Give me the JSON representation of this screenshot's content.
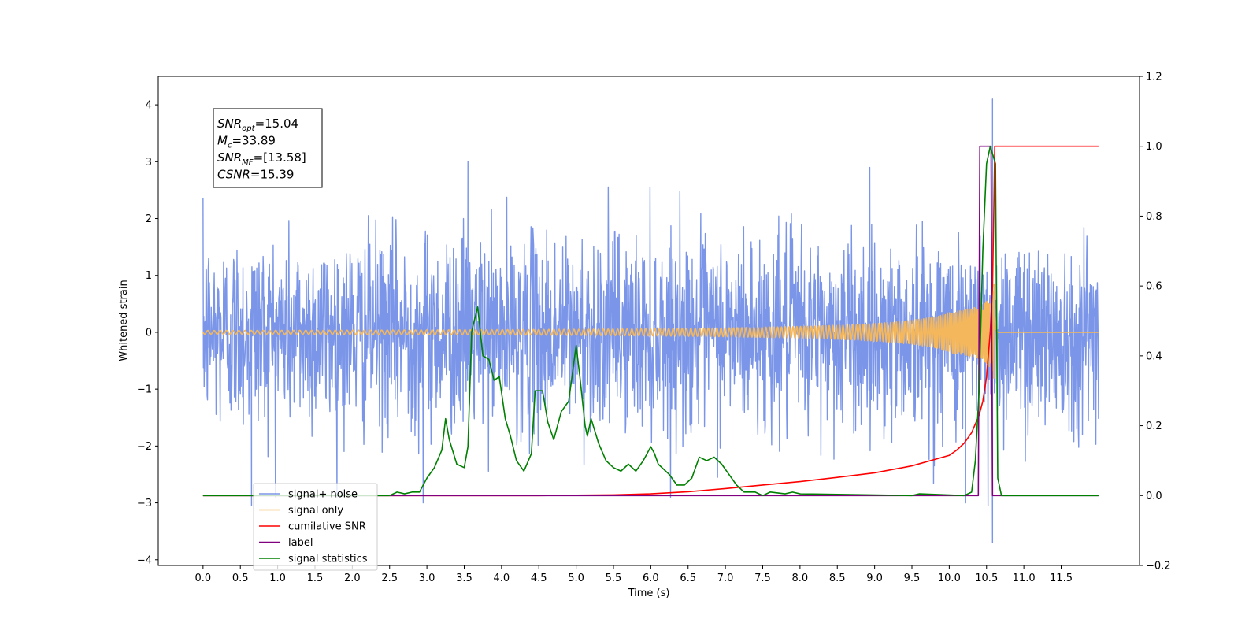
{
  "chart_data": {
    "type": "line",
    "title": "",
    "xlabel": "Time (s)",
    "ylabel": "Whitened strain",
    "y2label": "",
    "xlim": [
      -0.6,
      12.55
    ],
    "ylim": [
      -4.1,
      4.5
    ],
    "y2lim": [
      -0.2,
      1.2
    ],
    "x_ticks": [
      0.0,
      0.5,
      1.0,
      1.5,
      2.0,
      2.5,
      3.0,
      3.5,
      4.0,
      4.5,
      5.0,
      5.5,
      6.0,
      6.5,
      7.0,
      7.5,
      8.0,
      8.5,
      9.0,
      9.5,
      10.0,
      10.5,
      11.0,
      11.5
    ],
    "x_tick_labels": [
      "0.0",
      "0.5",
      "1.0",
      "1.5",
      "2.0",
      "2.5",
      "3.0",
      "3.5",
      "4.0",
      "4.5",
      "5.0",
      "5.5",
      "6.0",
      "6.5",
      "7.0",
      "7.5",
      "8.0",
      "8.5",
      "9.0",
      "9.5",
      "10.0",
      "10.5",
      "11.0",
      "11.5"
    ],
    "y_ticks": [
      4,
      3,
      2,
      1,
      0,
      -1,
      -2,
      -3,
      -4
    ],
    "y_tick_labels": [
      "4",
      "3",
      "2",
      "1",
      "0",
      "−1",
      "−2",
      "−3",
      "−4"
    ],
    "y2_ticks": [
      1.2,
      1.0,
      0.8,
      0.6,
      0.4,
      0.2,
      0.0,
      -0.2
    ],
    "y2_tick_labels": [
      "1.2",
      "1.0",
      "0.8",
      "0.6",
      "0.4",
      "0.2",
      "0.0",
      "−0.2"
    ],
    "grid": false,
    "legend_position": "lower-left",
    "legend": [
      "signal+ noise",
      "signal only",
      "cumilative SNR",
      "label",
      "signal statistics"
    ],
    "annotation": {
      "lines": [
        {
          "label": "SNR",
          "sub": "opt",
          "value": "=15.04"
        },
        {
          "label": "M",
          "sub": "c",
          "value": "=33.89"
        },
        {
          "label": "SNR",
          "sub": "MF",
          "value": "=[13.58]"
        },
        {
          "label": "CSNR",
          "sub": "",
          "value": "=15.39"
        }
      ]
    },
    "series": [
      {
        "name": "signal+ noise",
        "color": "#7b96e8",
        "axis": "left",
        "x_range": [
          0.0,
          12.0
        ],
        "noise_std": 0.85,
        "peaks": [
          {
            "x": 10.58,
            "y": 4.1
          },
          {
            "x": 10.58,
            "y": -3.7
          },
          {
            "x": 3.55,
            "y": 3.0
          },
          {
            "x": 0.65,
            "y": -3.05
          },
          {
            "x": 2.95,
            "y": -3.0
          },
          {
            "x": 10.52,
            "y": -3.05
          },
          {
            "x": 10.22,
            "y": -3.0
          }
        ]
      },
      {
        "name": "signal only",
        "color": "#f5b75b",
        "axis": "left",
        "x_range": [
          0.0,
          12.0
        ],
        "t_merge": 10.6,
        "peak_amplitude": 0.85
      },
      {
        "name": "cumilative SNR",
        "color": "#ff0000",
        "axis": "right",
        "points": [
          [
            0.0,
            0.0
          ],
          [
            4.5,
            0.0
          ],
          [
            5.0,
            0.001
          ],
          [
            5.5,
            0.002
          ],
          [
            6.0,
            0.005
          ],
          [
            6.5,
            0.011
          ],
          [
            7.0,
            0.02
          ],
          [
            7.5,
            0.03
          ],
          [
            8.0,
            0.04
          ],
          [
            8.5,
            0.052
          ],
          [
            9.0,
            0.065
          ],
          [
            9.5,
            0.085
          ],
          [
            10.0,
            0.115
          ],
          [
            10.1,
            0.13
          ],
          [
            10.2,
            0.15
          ],
          [
            10.3,
            0.18
          ],
          [
            10.4,
            0.23
          ],
          [
            10.45,
            0.27
          ],
          [
            10.5,
            0.34
          ],
          [
            10.55,
            0.47
          ],
          [
            10.58,
            0.6
          ],
          [
            10.6,
            0.85
          ],
          [
            10.61,
            1.0
          ],
          [
            12.0,
            1.0
          ]
        ]
      },
      {
        "name": "label",
        "color": "#800080",
        "axis": "right",
        "points": [
          [
            0.0,
            0.0
          ],
          [
            10.39,
            0.0
          ],
          [
            10.41,
            1.0
          ],
          [
            10.56,
            1.0
          ],
          [
            10.58,
            0.0
          ],
          [
            12.0,
            0.0
          ]
        ]
      },
      {
        "name": "signal statistics",
        "color": "#008000",
        "axis": "right",
        "points": [
          [
            0.0,
            0.0
          ],
          [
            2.5,
            0.0
          ],
          [
            2.6,
            0.01
          ],
          [
            2.7,
            0.005
          ],
          [
            2.8,
            0.01
          ],
          [
            2.9,
            0.01
          ],
          [
            3.0,
            0.05
          ],
          [
            3.1,
            0.08
          ],
          [
            3.2,
            0.13
          ],
          [
            3.25,
            0.22
          ],
          [
            3.3,
            0.16
          ],
          [
            3.4,
            0.09
          ],
          [
            3.5,
            0.08
          ],
          [
            3.55,
            0.14
          ],
          [
            3.6,
            0.47
          ],
          [
            3.68,
            0.54
          ],
          [
            3.75,
            0.4
          ],
          [
            3.83,
            0.39
          ],
          [
            3.9,
            0.33
          ],
          [
            3.97,
            0.34
          ],
          [
            4.05,
            0.22
          ],
          [
            4.12,
            0.17
          ],
          [
            4.2,
            0.1
          ],
          [
            4.3,
            0.07
          ],
          [
            4.4,
            0.12
          ],
          [
            4.45,
            0.3
          ],
          [
            4.55,
            0.3
          ],
          [
            4.62,
            0.21
          ],
          [
            4.7,
            0.16
          ],
          [
            4.8,
            0.24
          ],
          [
            4.9,
            0.27
          ],
          [
            5.0,
            0.43
          ],
          [
            5.05,
            0.34
          ],
          [
            5.12,
            0.2
          ],
          [
            5.15,
            0.17
          ],
          [
            5.2,
            0.22
          ],
          [
            5.3,
            0.15
          ],
          [
            5.4,
            0.1
          ],
          [
            5.5,
            0.08
          ],
          [
            5.6,
            0.07
          ],
          [
            5.7,
            0.09
          ],
          [
            5.8,
            0.07
          ],
          [
            5.9,
            0.1
          ],
          [
            6.0,
            0.14
          ],
          [
            6.05,
            0.12
          ],
          [
            6.1,
            0.09
          ],
          [
            6.25,
            0.06
          ],
          [
            6.35,
            0.03
          ],
          [
            6.45,
            0.03
          ],
          [
            6.55,
            0.05
          ],
          [
            6.65,
            0.11
          ],
          [
            6.75,
            0.1
          ],
          [
            6.85,
            0.11
          ],
          [
            6.95,
            0.09
          ],
          [
            7.05,
            0.06
          ],
          [
            7.15,
            0.03
          ],
          [
            7.25,
            0.01
          ],
          [
            7.4,
            0.01
          ],
          [
            7.5,
            0.0
          ],
          [
            7.6,
            0.01
          ],
          [
            7.8,
            0.005
          ],
          [
            7.9,
            0.01
          ],
          [
            8.0,
            0.005
          ],
          [
            9.5,
            0.0
          ],
          [
            9.6,
            0.005
          ],
          [
            10.2,
            0.0
          ],
          [
            10.3,
            0.01
          ],
          [
            10.35,
            0.1
          ],
          [
            10.4,
            0.3
          ],
          [
            10.45,
            0.7
          ],
          [
            10.5,
            0.95
          ],
          [
            10.55,
            1.0
          ],
          [
            10.62,
            0.95
          ],
          [
            10.65,
            0.05
          ],
          [
            10.7,
            0.0
          ],
          [
            12.0,
            0.0
          ]
        ]
      }
    ]
  }
}
